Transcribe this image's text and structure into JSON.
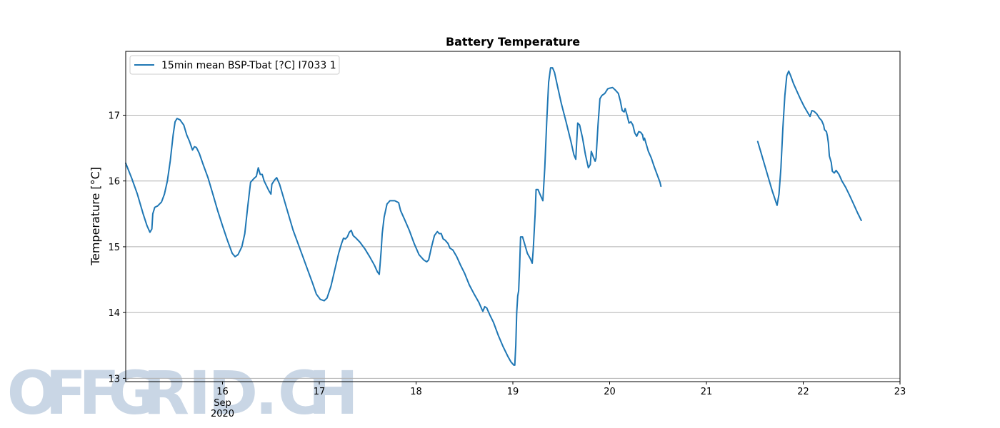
{
  "chart_data": {
    "type": "line",
    "title": "Battery Temperature",
    "xlabel": "",
    "ylabel": "Temperature [°C]",
    "xlim": [
      15.0,
      23.0
    ],
    "ylim": [
      12.95,
      17.97
    ],
    "x_ticks": [
      {
        "value": 16,
        "label": "16",
        "sublabel": [
          "Sep",
          "2020"
        ]
      },
      {
        "value": 17,
        "label": "17"
      },
      {
        "value": 18,
        "label": "18"
      },
      {
        "value": 19,
        "label": "19"
      },
      {
        "value": 20,
        "label": "20"
      },
      {
        "value": 21,
        "label": "21"
      },
      {
        "value": 22,
        "label": "22"
      },
      {
        "value": 23,
        "label": "23"
      }
    ],
    "y_ticks": [
      13,
      14,
      15,
      16,
      17
    ],
    "grid": "horizontal",
    "legend_position": "top-left",
    "series": [
      {
        "name": "15min mean BSP-Tbat [?C] I7033 1",
        "color": "#1f77b4",
        "segments": [
          [
            [
              15.0,
              16.27
            ],
            [
              15.06,
              16.05
            ],
            [
              15.12,
              15.8
            ],
            [
              15.18,
              15.5
            ],
            [
              15.22,
              15.32
            ],
            [
              15.25,
              15.22
            ],
            [
              15.27,
              15.27
            ],
            [
              15.28,
              15.5
            ],
            [
              15.3,
              15.6
            ],
            [
              15.33,
              15.62
            ],
            [
              15.37,
              15.68
            ],
            [
              15.4,
              15.8
            ],
            [
              15.43,
              16.0
            ],
            [
              15.46,
              16.3
            ],
            [
              15.49,
              16.7
            ],
            [
              15.51,
              16.9
            ],
            [
              15.53,
              16.95
            ],
            [
              15.56,
              16.93
            ],
            [
              15.6,
              16.85
            ],
            [
              15.63,
              16.7
            ],
            [
              15.66,
              16.6
            ],
            [
              15.69,
              16.47
            ],
            [
              15.71,
              16.52
            ],
            [
              15.73,
              16.51
            ],
            [
              15.76,
              16.42
            ],
            [
              15.8,
              16.25
            ],
            [
              15.85,
              16.05
            ],
            [
              15.9,
              15.8
            ],
            [
              15.95,
              15.55
            ],
            [
              16.0,
              15.32
            ],
            [
              16.05,
              15.1
            ],
            [
              16.1,
              14.9
            ],
            [
              16.13,
              14.85
            ],
            [
              16.16,
              14.88
            ],
            [
              16.2,
              15.0
            ],
            [
              16.23,
              15.2
            ],
            [
              16.26,
              15.6
            ],
            [
              16.29,
              15.98
            ],
            [
              16.32,
              16.03
            ],
            [
              16.35,
              16.07
            ],
            [
              16.37,
              16.2
            ],
            [
              16.39,
              16.1
            ],
            [
              16.41,
              16.1
            ],
            [
              16.43,
              16.0
            ],
            [
              16.48,
              15.85
            ],
            [
              16.5,
              15.8
            ],
            [
              16.51,
              15.95
            ],
            [
              16.54,
              16.02
            ],
            [
              16.56,
              16.05
            ],
            [
              16.59,
              15.95
            ],
            [
              16.62,
              15.8
            ],
            [
              16.66,
              15.6
            ],
            [
              16.7,
              15.4
            ],
            [
              16.73,
              15.25
            ],
            [
              16.78,
              15.05
            ],
            [
              16.83,
              14.85
            ],
            [
              16.88,
              14.65
            ],
            [
              16.93,
              14.45
            ],
            [
              16.97,
              14.28
            ],
            [
              17.01,
              14.2
            ],
            [
              17.05,
              14.18
            ],
            [
              17.08,
              14.22
            ],
            [
              17.12,
              14.4
            ],
            [
              17.16,
              14.65
            ],
            [
              17.2,
              14.9
            ],
            [
              17.23,
              15.05
            ],
            [
              17.25,
              15.13
            ],
            [
              17.27,
              15.12
            ],
            [
              17.29,
              15.15
            ],
            [
              17.31,
              15.22
            ],
            [
              17.33,
              15.25
            ],
            [
              17.35,
              15.17
            ],
            [
              17.38,
              15.13
            ],
            [
              17.42,
              15.07
            ],
            [
              17.47,
              14.97
            ],
            [
              17.52,
              14.85
            ],
            [
              17.57,
              14.72
            ],
            [
              17.6,
              14.62
            ],
            [
              17.62,
              14.58
            ],
            [
              17.64,
              14.95
            ],
            [
              17.65,
              15.2
            ],
            [
              17.67,
              15.45
            ],
            [
              17.7,
              15.65
            ],
            [
              17.73,
              15.7
            ],
            [
              17.78,
              15.7
            ],
            [
              17.82,
              15.67
            ],
            [
              17.84,
              15.55
            ],
            [
              17.88,
              15.42
            ],
            [
              17.93,
              15.25
            ],
            [
              17.98,
              15.05
            ],
            [
              18.03,
              14.88
            ],
            [
              18.08,
              14.8
            ],
            [
              18.11,
              14.77
            ],
            [
              18.13,
              14.8
            ],
            [
              18.16,
              15.0
            ],
            [
              18.19,
              15.17
            ],
            [
              18.22,
              15.23
            ],
            [
              18.24,
              15.2
            ],
            [
              18.26,
              15.2
            ],
            [
              18.28,
              15.12
            ],
            [
              18.3,
              15.1
            ],
            [
              18.33,
              15.05
            ],
            [
              18.35,
              14.98
            ],
            [
              18.38,
              14.95
            ],
            [
              18.42,
              14.85
            ],
            [
              18.46,
              14.72
            ],
            [
              18.5,
              14.6
            ],
            [
              18.55,
              14.42
            ],
            [
              18.6,
              14.28
            ],
            [
              18.65,
              14.15
            ],
            [
              18.68,
              14.05
            ],
            [
              18.69,
              14.02
            ],
            [
              18.71,
              14.09
            ],
            [
              18.73,
              14.07
            ],
            [
              18.76,
              13.97
            ],
            [
              18.8,
              13.85
            ],
            [
              18.85,
              13.65
            ],
            [
              18.9,
              13.48
            ],
            [
              18.95,
              13.33
            ],
            [
              18.98,
              13.25
            ],
            [
              19.01,
              13.2
            ],
            [
              19.02,
              13.2
            ],
            [
              19.03,
              13.5
            ],
            [
              19.04,
              14.0
            ],
            [
              19.05,
              14.25
            ],
            [
              19.06,
              14.33
            ],
            [
              19.07,
              14.7
            ],
            [
              19.08,
              15.15
            ],
            [
              19.1,
              15.15
            ],
            [
              19.12,
              15.05
            ],
            [
              19.15,
              14.9
            ],
            [
              19.18,
              14.82
            ],
            [
              19.2,
              14.75
            ],
            [
              19.21,
              14.95
            ],
            [
              19.23,
              15.5
            ],
            [
              19.24,
              15.87
            ],
            [
              19.26,
              15.87
            ],
            [
              19.28,
              15.8
            ],
            [
              19.31,
              15.7
            ],
            [
              19.33,
              16.2
            ],
            [
              19.35,
              16.9
            ],
            [
              19.37,
              17.5
            ],
            [
              19.39,
              17.72
            ],
            [
              19.41,
              17.72
            ],
            [
              19.43,
              17.65
            ],
            [
              19.46,
              17.45
            ],
            [
              19.5,
              17.18
            ],
            [
              19.55,
              16.9
            ],
            [
              19.6,
              16.6
            ],
            [
              19.63,
              16.4
            ],
            [
              19.65,
              16.33
            ],
            [
              19.66,
              16.6
            ],
            [
              19.67,
              16.88
            ],
            [
              19.69,
              16.85
            ],
            [
              19.72,
              16.65
            ],
            [
              19.75,
              16.4
            ],
            [
              19.78,
              16.2
            ],
            [
              19.8,
              16.25
            ],
            [
              19.81,
              16.45
            ],
            [
              19.83,
              16.37
            ],
            [
              19.85,
              16.3
            ],
            [
              19.86,
              16.35
            ],
            [
              19.88,
              16.85
            ],
            [
              19.9,
              17.25
            ],
            [
              19.92,
              17.3
            ],
            [
              19.95,
              17.33
            ],
            [
              19.98,
              17.4
            ],
            [
              20.0,
              17.41
            ],
            [
              20.03,
              17.42
            ],
            [
              20.06,
              17.38
            ],
            [
              20.09,
              17.33
            ],
            [
              20.11,
              17.22
            ],
            [
              20.13,
              17.07
            ],
            [
              20.15,
              17.05
            ],
            [
              20.16,
              17.1
            ],
            [
              20.18,
              17.0
            ],
            [
              20.2,
              16.88
            ],
            [
              20.22,
              16.9
            ],
            [
              20.24,
              16.85
            ],
            [
              20.26,
              16.73
            ],
            [
              20.28,
              16.68
            ],
            [
              20.3,
              16.75
            ],
            [
              20.32,
              16.74
            ],
            [
              20.34,
              16.7
            ],
            [
              20.35,
              16.62
            ],
            [
              20.36,
              16.65
            ],
            [
              20.38,
              16.55
            ],
            [
              20.4,
              16.45
            ],
            [
              20.43,
              16.35
            ],
            [
              20.46,
              16.22
            ],
            [
              20.49,
              16.1
            ],
            [
              20.52,
              15.98
            ],
            [
              20.53,
              15.92
            ]
          ],
          [
            [
              21.53,
              16.6
            ],
            [
              21.56,
              16.45
            ],
            [
              21.6,
              16.25
            ],
            [
              21.64,
              16.05
            ],
            [
              21.68,
              15.85
            ],
            [
              21.72,
              15.67
            ],
            [
              21.73,
              15.63
            ],
            [
              21.75,
              15.8
            ],
            [
              21.77,
              16.2
            ],
            [
              21.79,
              16.8
            ],
            [
              21.81,
              17.3
            ],
            [
              21.83,
              17.6
            ],
            [
              21.85,
              17.67
            ],
            [
              21.87,
              17.6
            ],
            [
              21.9,
              17.48
            ],
            [
              21.93,
              17.38
            ],
            [
              21.97,
              17.25
            ],
            [
              22.01,
              17.13
            ],
            [
              22.05,
              17.03
            ],
            [
              22.07,
              16.98
            ],
            [
              22.09,
              17.07
            ],
            [
              22.11,
              17.06
            ],
            [
              22.14,
              17.02
            ],
            [
              22.17,
              16.95
            ],
            [
              22.19,
              16.92
            ],
            [
              22.21,
              16.85
            ],
            [
              22.22,
              16.78
            ],
            [
              22.24,
              16.75
            ],
            [
              22.25,
              16.68
            ],
            [
              22.26,
              16.58
            ],
            [
              22.27,
              16.38
            ],
            [
              22.29,
              16.28
            ],
            [
              22.3,
              16.15
            ],
            [
              22.32,
              16.12
            ],
            [
              22.34,
              16.16
            ],
            [
              22.37,
              16.1
            ],
            [
              22.4,
              16.0
            ],
            [
              22.44,
              15.9
            ],
            [
              22.48,
              15.78
            ],
            [
              22.52,
              15.65
            ],
            [
              22.56,
              15.52
            ],
            [
              22.6,
              15.4
            ]
          ]
        ]
      }
    ]
  },
  "watermark": {
    "text": "OFFGRID.CH"
  }
}
